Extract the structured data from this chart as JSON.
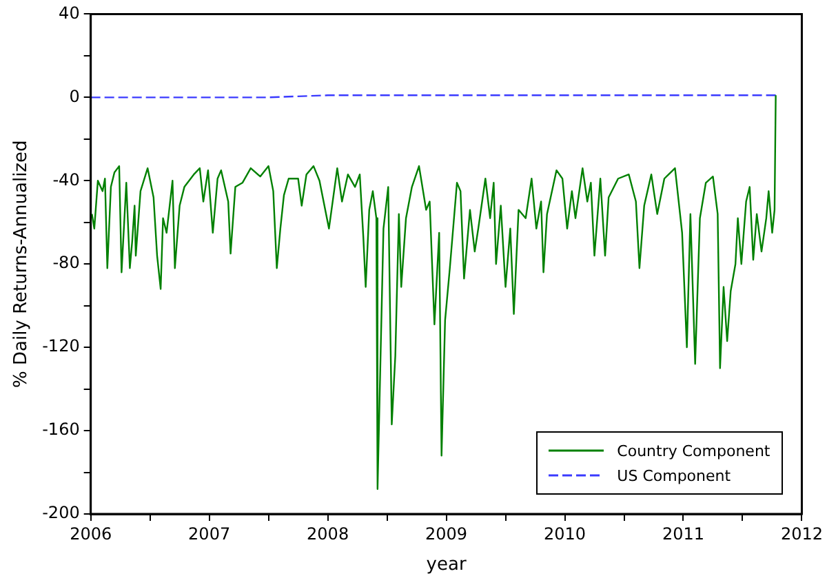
{
  "chart_data": {
    "type": "line",
    "xlabel": "year",
    "ylabel": "% Daily Returns-Annualized",
    "legend": "bottom right",
    "marker": "none",
    "xlim": [
      2006,
      2012
    ],
    "ylim": [
      -200,
      40
    ],
    "xticks": [
      2006,
      {
        "value": 2006.5,
        "label": null
      },
      2007,
      {
        "value": 2007.5,
        "label": null
      },
      2008,
      {
        "value": 2008.5,
        "label": null
      },
      2009,
      {
        "value": 2009.5,
        "label": null
      },
      2010,
      {
        "value": 2010.5,
        "label": null
      },
      2011,
      {
        "value": 2011.5,
        "label": null
      },
      2012
    ],
    "yticks": [
      -200,
      {
        "value": -180,
        "label": null
      },
      -160,
      {
        "value": -140,
        "label": null
      },
      -120,
      {
        "value": -100,
        "label": null
      },
      -80,
      {
        "value": -60,
        "label": null
      },
      -40,
      {
        "value": -20,
        "label": null
      },
      0,
      {
        "value": 20,
        "label": null
      },
      40
    ],
    "series": [
      {
        "name": "Country Component",
        "color": "#008000",
        "line_style": "solid",
        "x": [
          2006.01,
          2006.03,
          2006.06,
          2006.1,
          2006.12,
          2006.14,
          2006.17,
          2006.2,
          2006.24,
          2006.26,
          2006.3,
          2006.33,
          2006.35,
          2006.37,
          2006.38,
          2006.42,
          2006.48,
          2006.53,
          2006.56,
          2006.59,
          2006.61,
          2006.64,
          2006.69,
          2006.71,
          2006.75,
          2006.79,
          2006.87,
          2006.92,
          2006.95,
          2006.99,
          2007.03,
          2007.07,
          2007.1,
          2007.16,
          2007.18,
          2007.22,
          2007.28,
          2007.35,
          2007.43,
          2007.5,
          2007.54,
          2007.57,
          2007.6,
          2007.63,
          2007.67,
          2007.75,
          2007.78,
          2007.82,
          2007.88,
          2007.93,
          2008.01,
          2008.08,
          2008.12,
          2008.17,
          2008.23,
          2008.27,
          2008.3,
          2008.32,
          2008.35,
          2008.38,
          2008.41,
          2008.42,
          2008.47,
          2008.51,
          2008.54,
          2008.57,
          2008.6,
          2008.62,
          2008.66,
          2008.71,
          2008.77,
          2008.83,
          2008.86,
          2008.9,
          2008.94,
          2008.96,
          2008.99,
          2009.03,
          2009.09,
          2009.12,
          2009.15,
          2009.2,
          2009.24,
          2009.27,
          2009.33,
          2009.37,
          2009.4,
          2009.42,
          2009.46,
          2009.5,
          2009.54,
          2009.57,
          2009.61,
          2009.67,
          2009.72,
          2009.76,
          2009.8,
          2009.82,
          2009.85,
          2009.93,
          2009.98,
          2010.02,
          2010.06,
          2010.09,
          2010.15,
          2010.19,
          2010.22,
          2010.25,
          2010.3,
          2010.34,
          2010.37,
          2010.45,
          2010.54,
          2010.6,
          2010.63,
          2010.67,
          2010.73,
          2010.78,
          2010.84,
          2010.93,
          2010.99,
          2011.03,
          2011.06,
          2011.1,
          2011.14,
          2011.19,
          2011.25,
          2011.29,
          2011.31,
          2011.34,
          2011.37,
          2011.4,
          2011.44,
          2011.46,
          2011.49,
          2011.53,
          2011.56,
          2011.59,
          2011.62,
          2011.66,
          2011.7,
          2011.72,
          2011.75,
          2011.77,
          2011.78
        ],
        "values": [
          -56,
          -63,
          -40,
          -45,
          -39,
          -82,
          -43,
          -36,
          -33,
          -84,
          -41,
          -82,
          -69,
          -52,
          -76,
          -45,
          -34,
          -48,
          -76,
          -92,
          -58,
          -65,
          -40,
          -82,
          -52,
          -43,
          -37,
          -34,
          -50,
          -35,
          -65,
          -39,
          -35,
          -50,
          -75,
          -43,
          -41,
          -34,
          -38,
          -33,
          -45,
          -82,
          -63,
          -47,
          -39,
          -39,
          -52,
          -37,
          -33,
          -40,
          -63,
          -34,
          -50,
          -37,
          -43,
          -37,
          -67,
          -91,
          -54,
          -45,
          -58,
          -188,
          -63,
          -43,
          -157,
          -124,
          -56,
          -91,
          -58,
          -43,
          -33,
          -54,
          -50,
          -109,
          -65,
          -172,
          -107,
          -82,
          -41,
          -45,
          -87,
          -54,
          -74,
          -63,
          -39,
          -58,
          -41,
          -80,
          -52,
          -91,
          -63,
          -104,
          -54,
          -58,
          -39,
          -63,
          -50,
          -84,
          -56,
          -35,
          -39,
          -63,
          -45,
          -58,
          -34,
          -50,
          -41,
          -76,
          -39,
          -76,
          -48,
          -39,
          -37,
          -50,
          -82,
          -52,
          -37,
          -56,
          -39,
          -34,
          -65,
          -120,
          -56,
          -128,
          -58,
          -41,
          -38,
          -56,
          -130,
          -91,
          -117,
          -93,
          -80,
          -58,
          -80,
          -50,
          -43,
          -78,
          -56,
          -74,
          -58,
          -45,
          -65,
          -54,
          1
        ]
      },
      {
        "name": "US Component",
        "color": "#3a3aff",
        "line_style": "dashed",
        "x": [
          2006,
          2006.5,
          2007,
          2007.5,
          2008,
          2008.5,
          2009,
          2009.5,
          2010,
          2010.5,
          2011,
          2011.5,
          2011.78
        ],
        "values": [
          0,
          0,
          0,
          0,
          1,
          1,
          1,
          1,
          1,
          1,
          1,
          1,
          1
        ]
      }
    ]
  }
}
